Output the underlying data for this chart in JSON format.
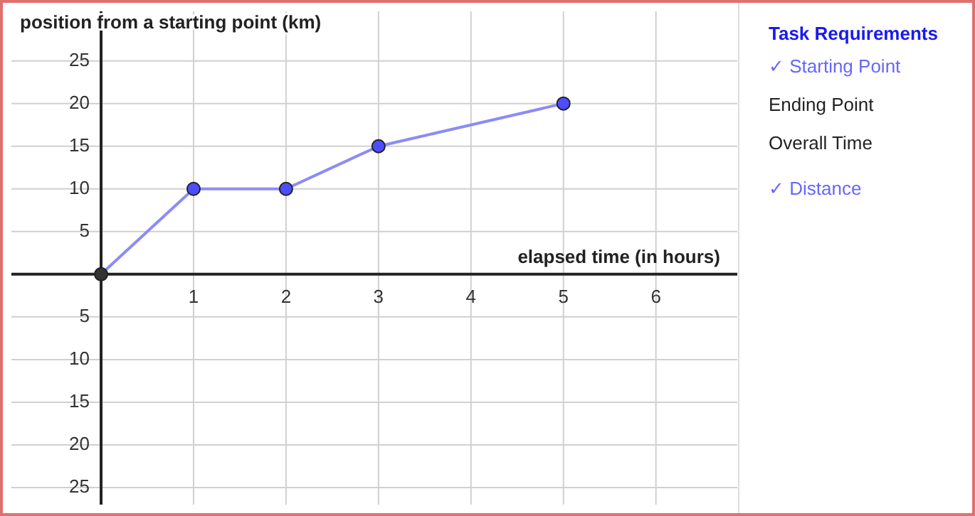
{
  "chart_data": [
    {
      "type": "line",
      "xlabel": "elapsed time (in hours)",
      "ylabel": "position from a starting point (km)",
      "x": [
        0,
        1,
        2,
        3,
        5
      ],
      "series": [
        {
          "color": "#8c8cf5",
          "colors": [
            "#333333",
            "#4d4dff",
            "#4d4dff",
            "#4d4dff",
            "#4d4dff"
          ],
          "values": [
            0,
            10,
            10,
            15,
            20
          ]
        }
      ],
      "xlim": [
        -0.97,
        6.88
      ],
      "ylim": [
        -27,
        30.8
      ],
      "xticks": [
        1,
        2,
        3,
        4,
        5,
        6
      ],
      "yticks": [
        {
          "value": -25,
          "label": "25"
        },
        {
          "value": -20,
          "label": "20"
        },
        {
          "value": -15,
          "label": "15"
        },
        {
          "value": -10,
          "label": "10"
        },
        {
          "value": -5,
          "label": "5"
        },
        5,
        10,
        15,
        20,
        25
      ],
      "grid": true,
      "marker": "circle",
      "line_style": "solid"
    },
    {
      "type": "other",
      "title": "Task Requirements",
      "categories": [
        "✓ Starting Point",
        "Ending Point",
        "Overall Time",
        "✓ Distance"
      ],
      "colors": [
        "#6666ff",
        "#222222",
        "#222222",
        "#6666ff"
      ]
    }
  ]
}
